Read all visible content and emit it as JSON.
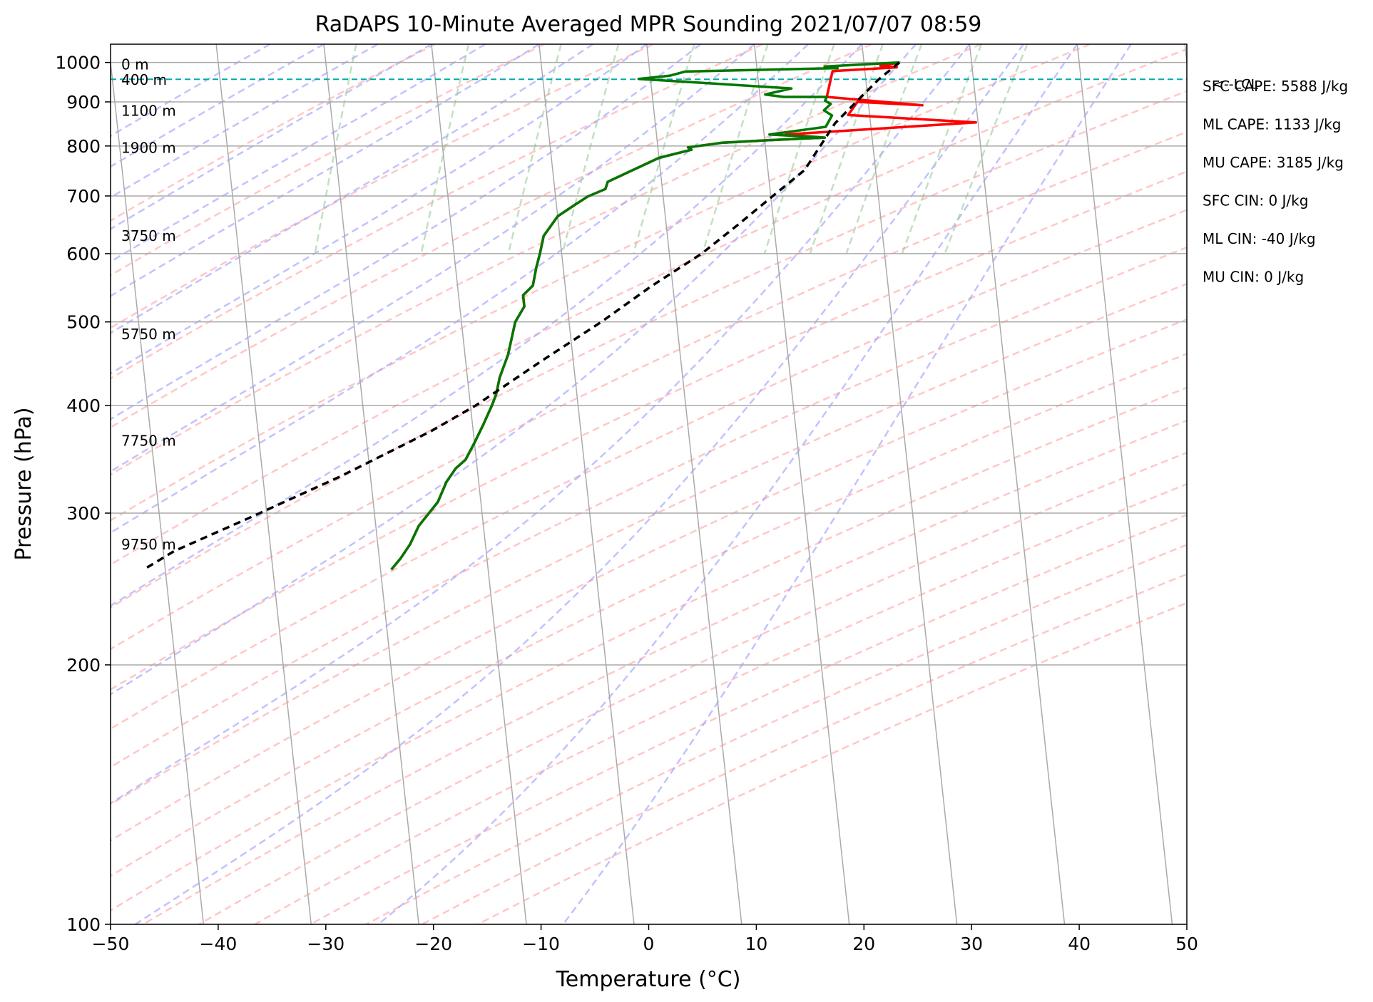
{
  "chart_data": {
    "type": "skew-t",
    "title": "RaDAPS 10-Minute Averaged MPR Sounding 2021/07/07 08:59",
    "xlabel": "Temperature (°C)",
    "ylabel": "Pressure (hPa)",
    "xlim": [
      -50,
      50
    ],
    "ylim": [
      1050,
      100
    ],
    "y_scale": "log",
    "grid": true,
    "x_ticks": [
      "−50",
      "−40",
      "−30",
      "−20",
      "−10",
      "0",
      "10",
      "20",
      "30",
      "40",
      "50"
    ],
    "y_ticks": [
      "100",
      "200",
      "300",
      "400",
      "500",
      "600",
      "700",
      "800",
      "900",
      "1000"
    ],
    "indices": [
      "SFC CAPE: 5588 J/kg",
      "ML CAPE: 1133 J/kg",
      "MU CAPE: 3185 J/kg",
      "SFC CIN: 0 J/kg",
      "ML CIN: -40 J/kg",
      "MU CIN: 0 J/kg"
    ],
    "height_labels": [
      {
        "text": "9750 m",
        "p": 276
      },
      {
        "text": "7750 m",
        "p": 364
      },
      {
        "text": "5750 m",
        "p": 484
      },
      {
        "text": "3750 m",
        "p": 629
      },
      {
        "text": "1900 m",
        "p": 796
      },
      {
        "text": "1100 m",
        "p": 879
      },
      {
        "text": "400 m",
        "p": 955
      },
      {
        "text": "0 m",
        "p": 995
      }
    ],
    "lcl": {
      "label": "<--LCL",
      "p": 956
    },
    "series": [
      {
        "kind": "temperature",
        "color": "#ff0000",
        "points": [
          [
            23.3,
            1000
          ],
          [
            21.5,
            991
          ],
          [
            23,
            987
          ],
          [
            17,
            977
          ],
          [
            16.2,
            912
          ],
          [
            25,
            892
          ],
          [
            19,
            900
          ],
          [
            18,
            869
          ],
          [
            29.8,
            852
          ],
          [
            12,
            825
          ],
          [
            15.6,
            818
          ],
          [
            10,
            812
          ],
          [
            6,
            807
          ],
          [
            2.8,
            797
          ],
          [
            3.1,
            792
          ],
          [
            0,
            775
          ],
          [
            -5,
            727
          ],
          [
            -5.3,
            713
          ],
          [
            -7,
            699
          ],
          [
            -8.5,
            681
          ],
          [
            -10,
            663
          ],
          [
            -11.5,
            629
          ],
          [
            -12,
            601
          ],
          [
            -12.5,
            578
          ],
          [
            -13,
            551
          ],
          [
            -14,
            537
          ],
          [
            -14,
            521
          ],
          [
            -15,
            500
          ],
          [
            -16,
            458
          ],
          [
            -17,
            431
          ],
          [
            -17.5,
            412
          ],
          [
            -18,
            400
          ],
          [
            -19,
            380
          ],
          [
            -20,
            362
          ],
          [
            -21,
            346
          ],
          [
            -22,
            338
          ],
          [
            -23,
            326
          ],
          [
            -24,
            309
          ],
          [
            -26,
            290
          ],
          [
            -27,
            276
          ],
          [
            -28,
            266
          ],
          [
            -29,
            258
          ]
        ]
      },
      {
        "kind": "dewpoint",
        "color": "#007700",
        "points": [
          [
            23.3,
            1000
          ],
          [
            16.3,
            989
          ],
          [
            16.5,
            987
          ],
          [
            17.5,
            985
          ],
          [
            3.3,
            976
          ],
          [
            1.8,
            965
          ],
          [
            -1.1,
            957
          ],
          [
            13,
            933
          ],
          [
            10.5,
            918
          ],
          [
            12.2,
            912
          ],
          [
            16.2,
            912
          ],
          [
            16,
            903
          ],
          [
            16.5,
            895
          ],
          [
            15.8,
            880
          ],
          [
            16.5,
            868
          ],
          [
            15.8,
            842
          ],
          [
            10.5,
            825
          ],
          [
            15.6,
            818
          ],
          [
            10,
            812
          ],
          [
            6,
            807
          ],
          [
            2.8,
            797
          ],
          [
            3.1,
            792
          ],
          [
            0,
            775
          ],
          [
            -5,
            727
          ],
          [
            -5.3,
            713
          ],
          [
            -7,
            699
          ],
          [
            -8.5,
            681
          ],
          [
            -10,
            663
          ],
          [
            -11.5,
            629
          ],
          [
            -12,
            601
          ],
          [
            -12.5,
            578
          ],
          [
            -13,
            551
          ],
          [
            -14,
            537
          ],
          [
            -14,
            521
          ],
          [
            -15,
            500
          ],
          [
            -16,
            458
          ],
          [
            -17,
            431
          ],
          [
            -17.5,
            412
          ],
          [
            -18,
            400
          ],
          [
            -19,
            380
          ],
          [
            -20,
            362
          ],
          [
            -21,
            346
          ],
          [
            -22,
            338
          ],
          [
            -23,
            326
          ],
          [
            -24,
            309
          ],
          [
            -26,
            290
          ],
          [
            -27,
            276
          ],
          [
            -28,
            266
          ],
          [
            -29,
            258
          ]
        ]
      },
      {
        "kind": "parcel",
        "color": "#000000",
        "points": [
          [
            23.3,
            1000
          ],
          [
            21.2,
            956
          ],
          [
            16.7,
            850
          ],
          [
            13.4,
            750
          ],
          [
            10.2,
            700
          ],
          [
            6.8,
            650
          ],
          [
            3,
            600
          ],
          [
            -2,
            550
          ],
          [
            -7,
            500
          ],
          [
            -13,
            450
          ],
          [
            -19.5,
            400
          ],
          [
            -24,
            373
          ],
          [
            -33,
            330
          ],
          [
            -42,
            295
          ],
          [
            -49,
            271
          ],
          [
            -52,
            258
          ]
        ]
      }
    ],
    "colors": {
      "isotherm": "#aaaaaa",
      "dry_adiabat": "#ff9999",
      "moist_adiabat": "#9999ff",
      "mixing_ratio": "#99cc99",
      "lcl_line": "#00aaaa"
    }
  }
}
